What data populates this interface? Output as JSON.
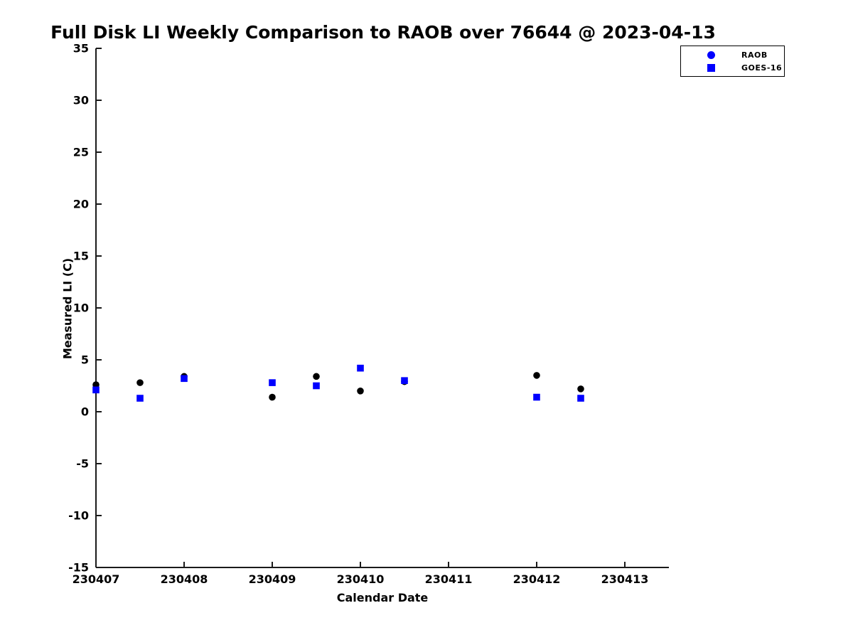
{
  "chart_data": {
    "type": "scatter",
    "title": "Full Disk LI Weekly Comparison to RAOB over 76644 @ 2023-04-13",
    "xlabel": "Calendar Date",
    "ylabel": "Measured LI (C)",
    "xlim": [
      230407,
      230413.5
    ],
    "ylim": [
      -15,
      35
    ],
    "xticks": [
      230407,
      230408,
      230409,
      230410,
      230411,
      230412,
      230413
    ],
    "yticks": [
      35,
      30,
      25,
      20,
      15,
      10,
      5,
      0,
      -5,
      -10,
      -15
    ],
    "grid": false,
    "legend_position": "top-right",
    "axis_color": "#1a1a1a",
    "series": [
      {
        "name": "RAOB",
        "marker": "circle",
        "color": "#000000",
        "legend_color": "#0000ff",
        "points": [
          [
            230407.0,
            2.6
          ],
          [
            230407.5,
            2.8
          ],
          [
            230408.0,
            3.4
          ],
          [
            230409.0,
            1.4
          ],
          [
            230409.5,
            3.4
          ],
          [
            230410.0,
            2.0
          ],
          [
            230410.5,
            2.9
          ],
          [
            230412.0,
            3.5
          ],
          [
            230412.5,
            2.2
          ]
        ]
      },
      {
        "name": "GOES-16",
        "marker": "square",
        "color": "#0000ff",
        "legend_color": "#0000ff",
        "points": [
          [
            230407.0,
            2.1
          ],
          [
            230407.5,
            1.3
          ],
          [
            230408.0,
            3.2
          ],
          [
            230409.0,
            2.8
          ],
          [
            230409.5,
            2.5
          ],
          [
            230410.0,
            4.2
          ],
          [
            230410.5,
            3.0
          ],
          [
            230412.0,
            1.4
          ],
          [
            230412.5,
            1.3
          ]
        ]
      }
    ]
  }
}
